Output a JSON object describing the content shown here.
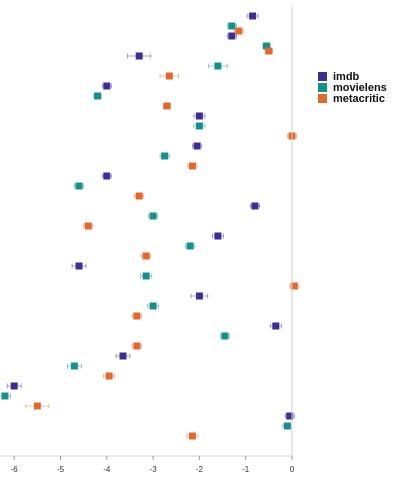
{
  "chart_data": {
    "type": "scatter",
    "title": "",
    "xlabel": "",
    "ylabel": "",
    "xlim": [
      -6.2,
      0.2
    ],
    "xticks": [
      "-6",
      "-5",
      "-4",
      "-3",
      "-2",
      "-1",
      "0"
    ],
    "grid": false,
    "legend_position": "top-right",
    "error_bars": true,
    "colors": {
      "imdb": "#3f2d8f",
      "movielens": "#17908c",
      "metacritic": "#e06a2c"
    },
    "legend": [
      "imdb",
      "movielens",
      "metacritic"
    ],
    "series": [
      {
        "name": "imdb",
        "points": [
          {
            "row": 1,
            "x": -0.85,
            "err": 0.12
          },
          {
            "row": 3,
            "x": -1.3,
            "err": 0.1
          },
          {
            "row": 5,
            "x": -3.3,
            "err": 0.25
          },
          {
            "row": 8,
            "x": -4.0,
            "err": 0.1
          },
          {
            "row": 11,
            "x": -2.0,
            "err": 0.12
          },
          {
            "row": 14,
            "x": -2.05,
            "err": 0.1
          },
          {
            "row": 17,
            "x": -4.0,
            "err": 0.1
          },
          {
            "row": 20,
            "x": -0.8,
            "err": 0.1
          },
          {
            "row": 23,
            "x": -1.6,
            "err": 0.12
          },
          {
            "row": 26,
            "x": -4.6,
            "err": 0.15
          },
          {
            "row": 29,
            "x": -2.0,
            "err": 0.18
          },
          {
            "row": 32,
            "x": -0.35,
            "err": 0.12
          },
          {
            "row": 35,
            "x": -3.65,
            "err": 0.15
          },
          {
            "row": 38,
            "x": -6.0,
            "err": 0.15
          },
          {
            "row": 41,
            "x": -0.05,
            "err": 0.1
          }
        ]
      },
      {
        "name": "movielens",
        "points": [
          {
            "row": 2,
            "x": -1.3,
            "err": 0.1
          },
          {
            "row": 4,
            "x": -0.55,
            "err": 0.08
          },
          {
            "row": 6,
            "x": -1.6,
            "err": 0.2
          },
          {
            "row": 9,
            "x": -4.2,
            "err": 0.08
          },
          {
            "row": 12,
            "x": -2.0,
            "err": 0.12
          },
          {
            "row": 15,
            "x": -2.75,
            "err": 0.1
          },
          {
            "row": 18,
            "x": -4.6,
            "err": 0.1
          },
          {
            "row": 21,
            "x": -3.0,
            "err": 0.1
          },
          {
            "row": 24,
            "x": -2.2,
            "err": 0.1
          },
          {
            "row": 27,
            "x": -3.15,
            "err": 0.12
          },
          {
            "row": 30,
            "x": -3.0,
            "err": 0.12
          },
          {
            "row": 33,
            "x": -1.45,
            "err": 0.1
          },
          {
            "row": 36,
            "x": -4.7,
            "err": 0.15
          },
          {
            "row": 39,
            "x": -6.2,
            "err": 0.12
          },
          {
            "row": 42,
            "x": -0.1,
            "err": 0.1
          }
        ]
      },
      {
        "name": "metacritic",
        "points": [
          {
            "row": 2.5,
            "x": -1.15,
            "err": 0.1
          },
          {
            "row": 4.5,
            "x": -0.5,
            "err": 0.08
          },
          {
            "row": 7,
            "x": -2.65,
            "err": 0.2
          },
          {
            "row": 10,
            "x": -2.7,
            "err": 0.08
          },
          {
            "row": 13,
            "x": 0.0,
            "err": 0.1
          },
          {
            "row": 16,
            "x": -2.15,
            "err": 0.1
          },
          {
            "row": 19,
            "x": -3.3,
            "err": 0.1
          },
          {
            "row": 22,
            "x": -4.4,
            "err": 0.1
          },
          {
            "row": 25,
            "x": -3.15,
            "err": 0.1
          },
          {
            "row": 28,
            "x": 0.05,
            "err": 0.1
          },
          {
            "row": 31,
            "x": -3.35,
            "err": 0.1
          },
          {
            "row": 34,
            "x": -3.35,
            "err": 0.1
          },
          {
            "row": 37,
            "x": -3.95,
            "err": 0.12
          },
          {
            "row": 40,
            "x": -5.5,
            "err": 0.25
          },
          {
            "row": 43,
            "x": -2.15,
            "err": 0.12
          }
        ]
      }
    ]
  }
}
